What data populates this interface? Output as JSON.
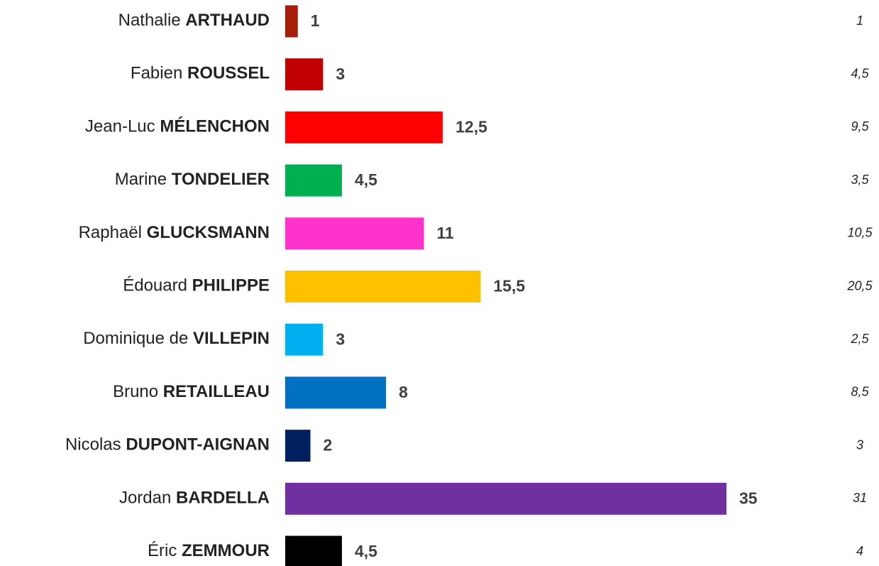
{
  "chart_data": {
    "type": "bar",
    "orientation": "horizontal",
    "categories": [
      {
        "first": "Nathalie",
        "last": "ARTHAUD"
      },
      {
        "first": "Fabien",
        "last": "ROUSSEL"
      },
      {
        "first": "Jean-Luc",
        "last": "MÉLENCHON"
      },
      {
        "first": "Marine",
        "last": "TONDELIER"
      },
      {
        "first": "Raphaël",
        "last": "GLUCKSMANN"
      },
      {
        "first": "Édouard",
        "last": "PHILIPPE"
      },
      {
        "first": "Dominique de",
        "last": "VILLEPIN"
      },
      {
        "first": "Bruno",
        "last": "RETAILLEAU"
      },
      {
        "first": "Nicolas",
        "last": "DUPONT-AIGNAN"
      },
      {
        "first": "Jordan",
        "last": "BARDELLA"
      },
      {
        "first": "Éric",
        "last": "ZEMMOUR"
      }
    ],
    "values": [
      1,
      3,
      12.5,
      4.5,
      11,
      15.5,
      3,
      8,
      2,
      35,
      4.5
    ],
    "value_labels": [
      "1",
      "3",
      "12,5",
      "4,5",
      "11",
      "15,5",
      "3",
      "8",
      "2",
      "35",
      "4,5"
    ],
    "colors": [
      "#a61e0a",
      "#c00000",
      "#ff0000",
      "#00b050",
      "#ff33cc",
      "#ffc000",
      "#00b0f0",
      "#0070c0",
      "#002060",
      "#7030a0",
      "#000000"
    ],
    "comparison_values": [
      1,
      4.5,
      9.5,
      3.5,
      10.5,
      20.5,
      2.5,
      8.5,
      3,
      31,
      4
    ],
    "comparison_labels": [
      "1",
      "4,5",
      "9,5",
      "3,5",
      "10,5",
      "20,5",
      "2,5",
      "8,5",
      "3",
      "31",
      "4"
    ]
  }
}
